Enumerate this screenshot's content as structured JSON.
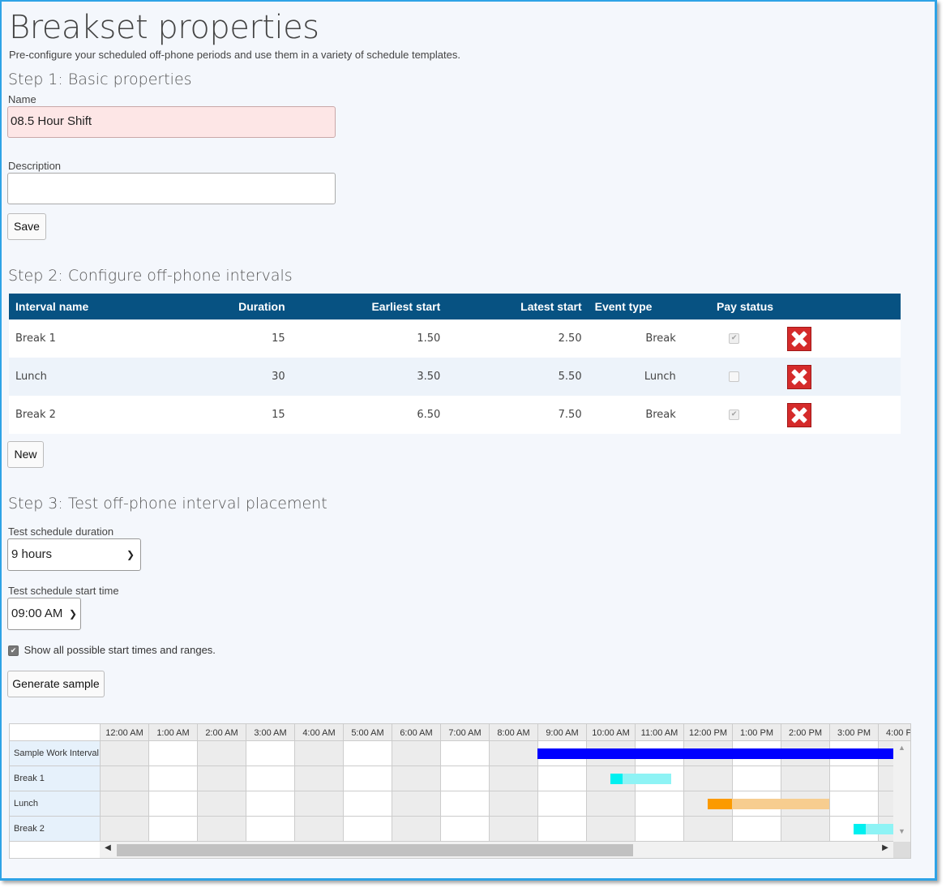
{
  "page": {
    "title": "Breakset properties",
    "subtitle": "Pre-configure your scheduled off-phone periods and use them in a variety of schedule templates."
  },
  "step1": {
    "heading": "Step 1: Basic properties",
    "name_label": "Name",
    "name_value": "08.5 Hour Shift",
    "description_label": "Description",
    "description_value": "",
    "save_label": "Save"
  },
  "step2": {
    "heading": "Step 2: Configure off-phone intervals",
    "columns": [
      "Interval name",
      "Duration",
      "Earliest start",
      "Latest start",
      "Event type",
      "Pay status"
    ],
    "rows": [
      {
        "name": "Break 1",
        "duration": "15",
        "earliest": "1.50",
        "latest": "2.50",
        "type": "Break",
        "paid": true
      },
      {
        "name": "Lunch",
        "duration": "30",
        "earliest": "3.50",
        "latest": "5.50",
        "type": "Lunch",
        "paid": false
      },
      {
        "name": "Break 2",
        "duration": "15",
        "earliest": "6.50",
        "latest": "7.50",
        "type": "Break",
        "paid": true
      }
    ],
    "new_label": "New"
  },
  "step3": {
    "heading": "Step 3: Test off-phone interval placement",
    "duration_label": "Test schedule duration",
    "duration_value": "9 hours",
    "start_label": "Test schedule start time",
    "start_value": "09:00 AM",
    "show_all_label": "Show all possible start times and ranges.",
    "show_all_checked": true,
    "generate_label": "Generate sample"
  },
  "timeline": {
    "hours": [
      "12:00 AM",
      "1:00 AM",
      "2:00 AM",
      "3:00 AM",
      "4:00 AM",
      "5:00 AM",
      "6:00 AM",
      "7:00 AM",
      "8:00 AM",
      "9:00 AM",
      "10:00 AM",
      "11:00 AM",
      "12:00 PM",
      "1:00 PM",
      "2:00 PM",
      "3:00 PM",
      "4:00 PM"
    ],
    "rows": [
      "Sample Work Interval",
      "Break 1",
      "Lunch",
      "Break 2"
    ],
    "colors": {
      "work": "#0000ff",
      "break_start": "#00f0f0",
      "break_range": "#8ef3f5",
      "lunch_start": "#fb9a00",
      "lunch_range": "#f7cd8f"
    }
  }
}
